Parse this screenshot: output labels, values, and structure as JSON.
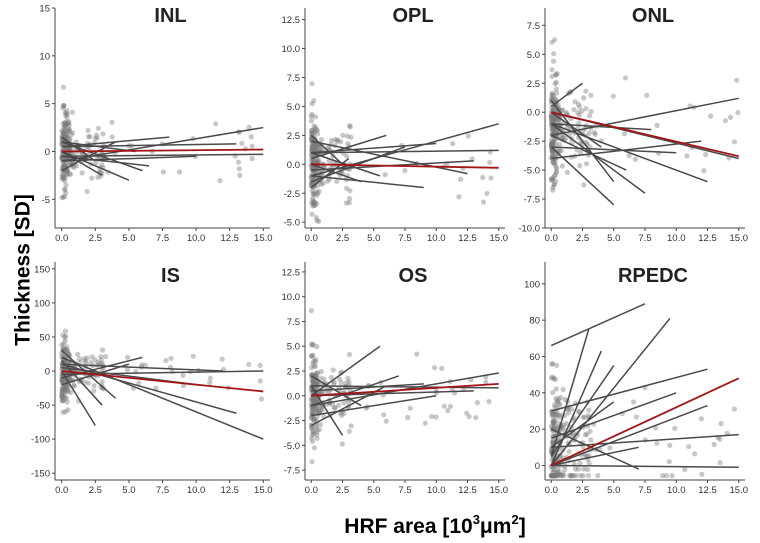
{
  "figure": {
    "ylabel": "Thickness [SD]",
    "xlabel_main": "HRF area [10",
    "xlabel_exp1": "3",
    "xlabel_unit": "μm",
    "xlabel_exp2": "2",
    "xlabel_end": "]"
  },
  "colors": {
    "points": "#7a7a7a",
    "lines": "#4a4a4a",
    "mean_line": "#a31515"
  },
  "chart_data": [
    {
      "type": "scatter",
      "title": "INL",
      "xlim": [
        -0.5,
        15.5
      ],
      "ylim": [
        -8,
        15
      ],
      "xticks": [
        0,
        2.5,
        5,
        7.5,
        10,
        12.5,
        15
      ],
      "xtick_labels": [
        "0.0",
        "2.5",
        "5.0",
        "7.5",
        "10.0",
        "12.5",
        "15.0"
      ],
      "yticks": [
        -5,
        0,
        5,
        10,
        15
      ],
      "ytick_labels": [
        "-5",
        "0",
        "5",
        "10",
        "15"
      ],
      "cluster": {
        "center": 0,
        "spread": 2.2,
        "count": 260
      },
      "lines": [
        [
          0,
          -1,
          15,
          2.5
        ],
        [
          0,
          0.5,
          13,
          0.8
        ],
        [
          0,
          -0.5,
          15,
          -0.3
        ],
        [
          0,
          1,
          6,
          -2
        ],
        [
          0,
          0,
          5,
          -3
        ],
        [
          0,
          -2,
          4,
          1
        ],
        [
          0,
          0.5,
          8,
          1.5
        ],
        [
          0,
          0,
          3,
          -2.5
        ],
        [
          0,
          1,
          5.5,
          0
        ],
        [
          0,
          -1,
          10,
          -0.5
        ],
        [
          0,
          1.5,
          2.5,
          -1
        ],
        [
          0,
          -0.5,
          6.5,
          -1.5
        ]
      ],
      "mean_line": [
        0,
        0,
        15,
        0.2
      ]
    },
    {
      "type": "scatter",
      "title": "OPL",
      "xlim": [
        -0.5,
        15.5
      ],
      "ylim": [
        -5.5,
        13.5
      ],
      "xticks": [
        0,
        2.5,
        5,
        7.5,
        10,
        12.5,
        15
      ],
      "xtick_labels": [
        "0.0",
        "2.5",
        "5.0",
        "7.5",
        "10.0",
        "12.5",
        "15.0"
      ],
      "yticks": [
        -5,
        -2.5,
        0,
        2.5,
        5,
        7.5,
        10,
        12.5
      ],
      "ytick_labels": [
        "-5.0",
        "-2.5",
        "0.0",
        "2.5",
        "5.0",
        "7.5",
        "10.0",
        "12.5"
      ],
      "cluster": {
        "center": 0,
        "spread": 2,
        "count": 260
      },
      "lines": [
        [
          0,
          -1,
          15,
          3.5
        ],
        [
          0,
          2,
          12.5,
          -0.8
        ],
        [
          0,
          1,
          15,
          1.2
        ],
        [
          0,
          -1,
          9,
          -2
        ],
        [
          0,
          0.5,
          6,
          2.5
        ],
        [
          0,
          1,
          5.5,
          -1
        ],
        [
          0,
          -0.5,
          13,
          0.3
        ],
        [
          0,
          2.5,
          2.5,
          0
        ],
        [
          0,
          -1.5,
          7.5,
          1.5
        ],
        [
          0,
          0,
          4,
          -1.5
        ],
        [
          0,
          1,
          10,
          1.8
        ],
        [
          0,
          -2,
          3,
          0.5
        ]
      ],
      "mean_line": [
        0,
        0,
        15,
        -0.3
      ]
    },
    {
      "type": "scatter",
      "title": "ONL",
      "xlim": [
        -0.5,
        15.5
      ],
      "ylim": [
        -10,
        9
      ],
      "xticks": [
        0,
        2.5,
        5,
        7.5,
        10,
        12.5,
        15
      ],
      "xtick_labels": [
        "0.0",
        "2.5",
        "5.0",
        "7.5",
        "10.0",
        "12.5",
        "15.0"
      ],
      "yticks": [
        -10,
        -7.5,
        -5,
        -2.5,
        0,
        2.5,
        5,
        7.5
      ],
      "ytick_labels": [
        "-10.0",
        "-7.5",
        "-5.0",
        "-2.5",
        "0.0",
        "2.5",
        "5.0",
        "7.5"
      ],
      "cluster": {
        "center": -1.5,
        "spread": 2.5,
        "count": 280
      },
      "lines": [
        [
          0,
          -2,
          15,
          1.2
        ],
        [
          0,
          0,
          15,
          -4
        ],
        [
          0,
          -1,
          12.5,
          -6
        ],
        [
          0,
          1,
          5,
          -6
        ],
        [
          0,
          -3,
          10,
          -3.5
        ],
        [
          0,
          -1,
          7.5,
          -7
        ],
        [
          0,
          0.5,
          2.5,
          2.5
        ],
        [
          0,
          -2,
          6,
          -5
        ],
        [
          0,
          -4,
          12,
          -2.5
        ],
        [
          0,
          0,
          4,
          -3
        ],
        [
          0,
          -1,
          8,
          -1.5
        ],
        [
          0,
          -3,
          5,
          -8
        ]
      ],
      "mean_line": [
        0,
        0,
        15,
        -3.8
      ]
    },
    {
      "type": "scatter",
      "title": "IS",
      "xlim": [
        -0.5,
        15.5
      ],
      "ylim": [
        -160,
        160
      ],
      "xticks": [
        0,
        2.5,
        5,
        7.5,
        10,
        12.5,
        15
      ],
      "xtick_labels": [
        "0.0",
        "2.5",
        "5.0",
        "7.5",
        "10.0",
        "12.5",
        "15.0"
      ],
      "yticks": [
        -150,
        -100,
        -50,
        0,
        50,
        100,
        150
      ],
      "ytick_labels": [
        "-150",
        "-100",
        "-50",
        "0",
        "50",
        "100",
        "150"
      ],
      "cluster": {
        "center": 0,
        "spread": 25,
        "count": 240
      },
      "lines": [
        [
          0,
          20,
          15,
          -100
        ],
        [
          0,
          10,
          13,
          -62
        ],
        [
          0,
          -5,
          15,
          0
        ],
        [
          0,
          30,
          4,
          -40
        ],
        [
          0,
          -10,
          6,
          20
        ],
        [
          0,
          15,
          3,
          -50
        ],
        [
          0,
          5,
          10,
          -20
        ],
        [
          0,
          -20,
          5,
          10
        ],
        [
          0,
          10,
          12,
          0
        ],
        [
          0,
          0,
          2.5,
          -80
        ]
      ],
      "mean_line": [
        0,
        0,
        15,
        -30
      ]
    },
    {
      "type": "scatter",
      "title": "OS",
      "xlim": [
        -0.5,
        15.5
      ],
      "ylim": [
        -8.5,
        13.5
      ],
      "xticks": [
        0,
        2.5,
        5,
        7.5,
        10,
        12.5,
        15
      ],
      "xtick_labels": [
        "0.0",
        "2.5",
        "5.0",
        "7.5",
        "10.0",
        "12.5",
        "15.0"
      ],
      "yticks": [
        -7.5,
        -5,
        -2.5,
        0,
        2.5,
        5,
        7.5,
        10,
        12.5
      ],
      "ytick_labels": [
        "-7.5",
        "-5.0",
        "-2.5",
        "0.0",
        "2.5",
        "5.0",
        "7.5",
        "10.0",
        "12.5"
      ],
      "cluster": {
        "center": 0,
        "spread": 2.2,
        "count": 260
      },
      "lines": [
        [
          0,
          -1,
          15,
          2.3
        ],
        [
          0,
          1,
          15,
          0.8
        ],
        [
          0,
          0,
          5.5,
          5
        ],
        [
          0,
          -2,
          10,
          0
        ],
        [
          0,
          1,
          2.5,
          -4
        ],
        [
          0,
          0,
          13,
          0.5
        ],
        [
          0,
          -1,
          7,
          2
        ],
        [
          0,
          2,
          4,
          -1
        ],
        [
          0,
          -3,
          6,
          1
        ],
        [
          0,
          0.5,
          9,
          1.2
        ]
      ],
      "mean_line": [
        0,
        0,
        15,
        1.2
      ]
    },
    {
      "type": "scatter",
      "title": "RPEDC",
      "xlim": [
        -0.5,
        15.5
      ],
      "ylim": [
        -8,
        112
      ],
      "xticks": [
        0,
        2.5,
        5,
        7.5,
        10,
        12.5,
        15
      ],
      "xtick_labels": [
        "0.0",
        "2.5",
        "5.0",
        "7.5",
        "10.0",
        "12.5",
        "15.0"
      ],
      "yticks": [
        0,
        20,
        40,
        60,
        80,
        100
      ],
      "ytick_labels": [
        "0",
        "20",
        "40",
        "60",
        "80",
        "100"
      ],
      "cluster": {
        "center": 12,
        "spread": 18,
        "count": 260
      },
      "lines": [
        [
          0,
          10,
          15,
          17
        ],
        [
          0,
          0,
          15,
          -1
        ],
        [
          0,
          66,
          7.5,
          89
        ],
        [
          0,
          0,
          9.5,
          81
        ],
        [
          0,
          5,
          5,
          55
        ],
        [
          0,
          0,
          12.5,
          33
        ],
        [
          0,
          30,
          12.5,
          53
        ],
        [
          0,
          10,
          5,
          35
        ],
        [
          0,
          0,
          4,
          63
        ],
        [
          0,
          20,
          7,
          -2
        ],
        [
          0,
          5,
          3,
          75
        ],
        [
          0,
          15,
          10,
          40
        ],
        [
          0,
          0,
          7,
          10
        ]
      ],
      "mean_line": [
        0,
        0,
        15,
        48
      ]
    }
  ]
}
